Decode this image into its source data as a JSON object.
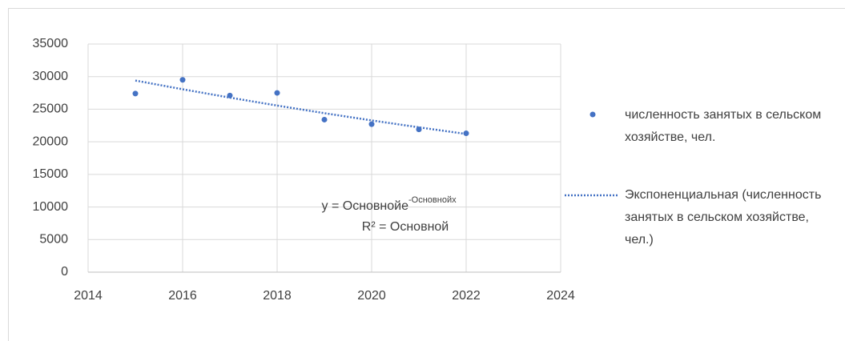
{
  "chart_data": {
    "type": "scatter",
    "x": [
      2015,
      2016,
      2017,
      2018,
      2019,
      2020,
      2021,
      2022
    ],
    "series": [
      {
        "name": "численность занятых в сельском хозяйстве, чел.",
        "color": "#4472c4",
        "values": [
          27400,
          29500,
          27100,
          27500,
          23400,
          22700,
          21900,
          21300
        ]
      },
      {
        "name": "Экспоненциальная (численность занятых в сельском хозяйстве, чел.)",
        "color": "#4472c4",
        "line_style": "dotted",
        "values": [
          29400,
          28060,
          26780,
          25560,
          24390,
          23280,
          22220,
          21200
        ]
      }
    ],
    "xlim": [
      2014,
      2024
    ],
    "xticks": [
      2014,
      2016,
      2018,
      2020,
      2022,
      2024
    ],
    "ylim": [
      0,
      35000
    ],
    "yticks": [
      0,
      5000,
      10000,
      15000,
      20000,
      25000,
      30000,
      35000
    ],
    "grid": true,
    "legend": "right",
    "annotations": {
      "equation": "y = Основнойe",
      "equation_exponent": "-Основнойx",
      "r_squared": "R² = Основной"
    }
  }
}
